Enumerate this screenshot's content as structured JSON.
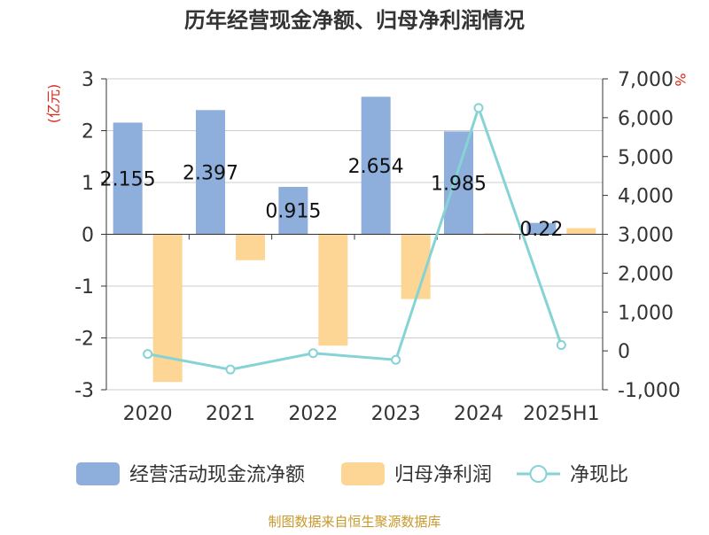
{
  "chart_data": {
    "type": "bar",
    "title": "历年经营现金净额、归母净利润情况",
    "left_unit": "(亿元)",
    "right_unit": "%",
    "categories": [
      "2020",
      "2021",
      "2022",
      "2023",
      "2024",
      "2025H1"
    ],
    "left_axis": {
      "ylim": [
        -3,
        3
      ],
      "ticks": [
        "3",
        "2",
        "1",
        "0",
        "-1",
        "-2",
        "-3"
      ]
    },
    "right_axis": {
      "ylim": [
        -1000,
        7000
      ],
      "ticks": [
        "7,000",
        "6,000",
        "5,000",
        "4,000",
        "3,000",
        "2,000",
        "1,000",
        "0",
        "-1,000"
      ]
    },
    "series": [
      {
        "name": "经营活动现金流净额",
        "kind": "bar",
        "axis": "left",
        "color": "#8eaedc",
        "values": [
          2.155,
          2.397,
          0.915,
          2.654,
          1.985,
          0.22
        ],
        "labels": [
          "2.155",
          "2.397",
          "0.915",
          "2.654",
          "1.985",
          "0.22"
        ]
      },
      {
        "name": "归母净利润",
        "kind": "bar",
        "axis": "left",
        "color": "#fdd595",
        "values": [
          -2.85,
          -0.5,
          -2.15,
          -1.25,
          0.02,
          0.12
        ]
      },
      {
        "name": "净现比",
        "kind": "line",
        "axis": "right",
        "color": "#86d3d6",
        "values": [
          -80,
          -480,
          -60,
          -230,
          6250,
          150
        ]
      }
    ],
    "legend": {
      "placement": "bottom"
    },
    "grid": true
  },
  "footer": {
    "source": "制图数据来自恒生聚源数据库"
  }
}
